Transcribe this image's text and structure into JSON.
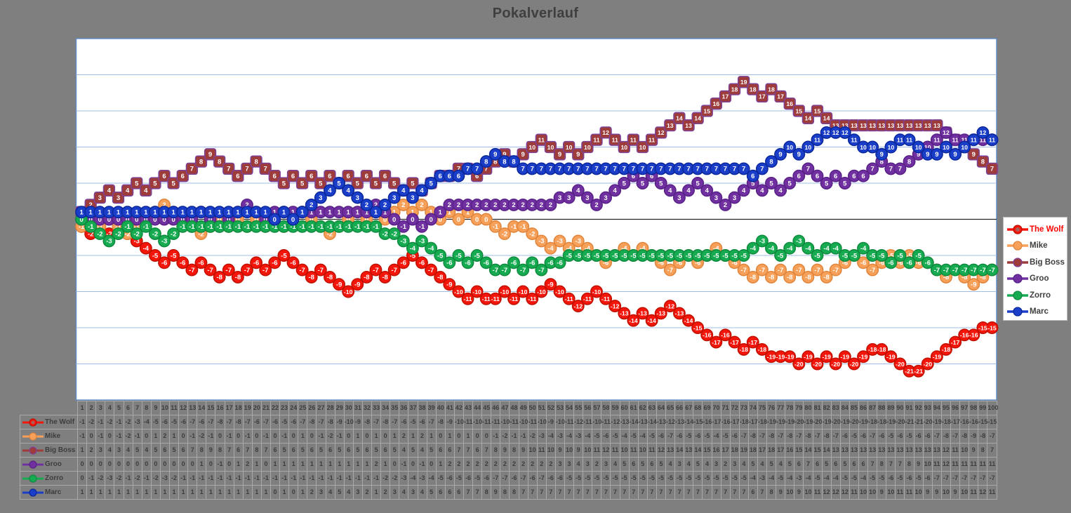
{
  "title": "Pokalverlauf",
  "colors": {
    "page_bg": "#7f7f7f",
    "plot_bg": "#ffffff",
    "plot_border": "#5e8ac7",
    "gridline": "#9fbce0",
    "zero_axis": "#262626",
    "title_text": "#3f3f3f",
    "table_grid": "#a9a9a9",
    "table_text": "#3d3d3d",
    "wolf_legend_text": "#ff0000"
  },
  "legend": {
    "position": "right",
    "items": [
      {
        "label": "The Wolf",
        "text_color": "#ff0000"
      },
      {
        "label": "Mike",
        "text_color": "#3f3f3f"
      },
      {
        "label": "Big Boss",
        "text_color": "#3f3f3f"
      },
      {
        "label": "Groo",
        "text_color": "#3f3f3f"
      },
      {
        "label": "Zorro",
        "text_color": "#3f3f3f"
      },
      {
        "label": "Marc",
        "text_color": "#3f3f3f"
      }
    ]
  },
  "chart_data": {
    "type": "line",
    "title": "Pokalverlauf",
    "xlabel": "",
    "ylabel": "",
    "ylim": [
      -25,
      25
    ],
    "grid_interval": 5,
    "grid": true,
    "legend_position": "right",
    "data_table_shown": true,
    "x": [
      1,
      2,
      3,
      4,
      5,
      6,
      7,
      8,
      9,
      10,
      11,
      12,
      13,
      14,
      15,
      16,
      17,
      18,
      19,
      20,
      21,
      22,
      23,
      24,
      25,
      26,
      27,
      28,
      29,
      30,
      31,
      32,
      33,
      34,
      35,
      36,
      37,
      38,
      39,
      40,
      41,
      42,
      43,
      44,
      45,
      46,
      47,
      48,
      49,
      50,
      51,
      52,
      53,
      54,
      55,
      56,
      57,
      58,
      59,
      60,
      61,
      62,
      63,
      64,
      65,
      66,
      67,
      68,
      69,
      70,
      71,
      72,
      73,
      74,
      75,
      76,
      77,
      78,
      79,
      80,
      81,
      82,
      83,
      84,
      85,
      86,
      87,
      88,
      89,
      90,
      91,
      92,
      93,
      94,
      95,
      96,
      97,
      98,
      99,
      100
    ],
    "series": [
      {
        "name": "The Wolf",
        "marker": "circle",
        "color": "#f5160b",
        "border": "#c01000",
        "values": [
          -1,
          -2,
          -1,
          -2,
          -1,
          -2,
          -3,
          -4,
          -5,
          -6,
          -5,
          -6,
          -7,
          -6,
          -7,
          -8,
          -7,
          -8,
          -7,
          -6,
          -7,
          -6,
          -5,
          -6,
          -7,
          -8,
          -7,
          -8,
          -9,
          -10,
          -9,
          -8,
          -7,
          -8,
          -7,
          -6,
          -5,
          -6,
          -7,
          -8,
          -9,
          -10,
          -11,
          -10,
          -11,
          -11,
          -10,
          -11,
          -10,
          -11,
          -10,
          -9,
          -10,
          -11,
          -12,
          -11,
          -10,
          -11,
          -12,
          -13,
          -14,
          -13,
          -14,
          -13,
          -12,
          -13,
          -14,
          -15,
          -16,
          -17,
          -16,
          -17,
          -18,
          -17,
          -18,
          -19,
          -19,
          -19,
          -20,
          -19,
          -20,
          -19,
          -20,
          -19,
          -20,
          -19,
          -18,
          -18,
          -19,
          -20,
          -21,
          -21,
          -20,
          -19,
          -18,
          -17,
          -16,
          -16,
          -15,
          -15
        ]
      },
      {
        "name": "Mike",
        "marker": "circle",
        "color": "#f7a05a",
        "border": "#e0853b",
        "values": [
          -1,
          0,
          -1,
          0,
          -1,
          -2,
          -1,
          0,
          1,
          2,
          1,
          0,
          -1,
          -2,
          -1,
          0,
          -1,
          0,
          -1,
          0,
          -1,
          0,
          -1,
          0,
          1,
          0,
          -1,
          -2,
          -1,
          0,
          1,
          0,
          1,
          0,
          1,
          2,
          1,
          2,
          1,
          0,
          1,
          0,
          1,
          0,
          0,
          -1,
          -2,
          -1,
          -1,
          -2,
          -3,
          -4,
          -3,
          -4,
          -3,
          -4,
          -5,
          -6,
          -5,
          -4,
          -5,
          -4,
          -5,
          -6,
          -7,
          -6,
          -5,
          -6,
          -5,
          -4,
          -5,
          -6,
          -7,
          -8,
          -7,
          -8,
          -7,
          -8,
          -7,
          -8,
          -7,
          -8,
          -7,
          -6,
          -5,
          -6,
          -7,
          -6,
          -5,
          -6,
          -5,
          -6,
          -6,
          -7,
          -8,
          -7,
          -8,
          -9,
          -8,
          -7
        ]
      },
      {
        "name": "Big Boss",
        "marker": "square",
        "color": "#9e3b3b",
        "border": "#7d4397",
        "values": [
          1,
          2,
          3,
          4,
          3,
          4,
          5,
          4,
          5,
          6,
          5,
          6,
          7,
          8,
          9,
          8,
          7,
          6,
          7,
          8,
          7,
          6,
          5,
          6,
          5,
          6,
          5,
          6,
          5,
          6,
          5,
          6,
          5,
          6,
          5,
          4,
          5,
          4,
          5,
          6,
          6,
          7,
          7,
          6,
          7,
          8,
          9,
          8,
          9,
          10,
          11,
          10,
          9,
          10,
          9,
          10,
          11,
          12,
          11,
          10,
          11,
          10,
          11,
          12,
          13,
          14,
          13,
          14,
          15,
          16,
          17,
          18,
          19,
          18,
          17,
          18,
          17,
          16,
          15,
          14,
          15,
          14,
          13,
          13,
          13,
          13,
          13,
          13,
          13,
          13,
          13,
          13,
          13,
          13,
          12,
          11,
          10,
          9,
          8,
          7
        ]
      },
      {
        "name": "Groo",
        "marker": "circle",
        "color": "#7030a0",
        "border": "#582188",
        "values": [
          0,
          0,
          0,
          0,
          0,
          0,
          0,
          0,
          0,
          0,
          0,
          0,
          0,
          1,
          0,
          -1,
          0,
          1,
          2,
          1,
          0,
          1,
          1,
          1,
          1,
          1,
          1,
          1,
          1,
          1,
          1,
          1,
          2,
          1,
          0,
          -1,
          0,
          -1,
          0,
          1,
          2,
          2,
          2,
          2,
          2,
          2,
          2,
          2,
          2,
          2,
          2,
          2,
          3,
          3,
          4,
          3,
          2,
          3,
          4,
          5,
          6,
          5,
          6,
          5,
          4,
          3,
          4,
          5,
          4,
          3,
          2,
          3,
          4,
          5,
          4,
          5,
          4,
          5,
          6,
          7,
          6,
          5,
          6,
          5,
          6,
          6,
          7,
          8,
          7,
          7,
          8,
          9,
          10,
          11,
          12,
          11,
          11,
          11,
          11,
          11
        ]
      },
      {
        "name": "Zorro",
        "marker": "circle",
        "color": "#17ab51",
        "border": "#0e8a3e",
        "values": [
          0,
          -1,
          -2,
          -3,
          -2,
          -1,
          -2,
          -1,
          -2,
          -3,
          -2,
          -1,
          -1,
          -1,
          -1,
          -1,
          -1,
          -1,
          -1,
          -1,
          -1,
          -1,
          -1,
          -1,
          -1,
          -1,
          -1,
          -1,
          -1,
          -1,
          -1,
          -1,
          -1,
          -2,
          -2,
          -3,
          -4,
          -3,
          -4,
          -5,
          -6,
          -5,
          -6,
          -5,
          -6,
          -7,
          -7,
          -6,
          -7,
          -6,
          -7,
          -6,
          -6,
          -5,
          -5,
          -5,
          -5,
          -5,
          -5,
          -5,
          -5,
          -5,
          -5,
          -5,
          -5,
          -5,
          -5,
          -5,
          -5,
          -5,
          -5,
          -5,
          -5,
          -4,
          -3,
          -4,
          -5,
          -4,
          -3,
          -4,
          -5,
          -4,
          -4,
          -5,
          -5,
          -4,
          -5,
          -5,
          -6,
          -5,
          -6,
          -5,
          -6,
          -7,
          -7,
          -7,
          -7,
          -7,
          -7,
          -7
        ]
      },
      {
        "name": "Marc",
        "marker": "circle",
        "color": "#1a3ec8",
        "border": "#0a279c",
        "values": [
          1,
          1,
          1,
          1,
          1,
          1,
          1,
          1,
          1,
          1,
          1,
          1,
          1,
          1,
          1,
          1,
          1,
          1,
          1,
          1,
          1,
          0,
          1,
          0,
          1,
          2,
          3,
          4,
          5,
          4,
          3,
          2,
          1,
          2,
          3,
          4,
          3,
          4,
          5,
          6,
          6,
          6,
          7,
          7,
          8,
          9,
          8,
          8,
          7,
          7,
          7,
          7,
          7,
          7,
          7,
          7,
          7,
          7,
          7,
          7,
          7,
          7,
          7,
          7,
          7,
          7,
          7,
          7,
          7,
          7,
          7,
          7,
          7,
          6,
          7,
          8,
          9,
          10,
          9,
          10,
          11,
          12,
          12,
          12,
          11,
          10,
          10,
          9,
          10,
          11,
          11,
          10,
          9,
          9,
          10,
          9,
          10,
          11,
          12,
          11
        ]
      }
    ]
  }
}
